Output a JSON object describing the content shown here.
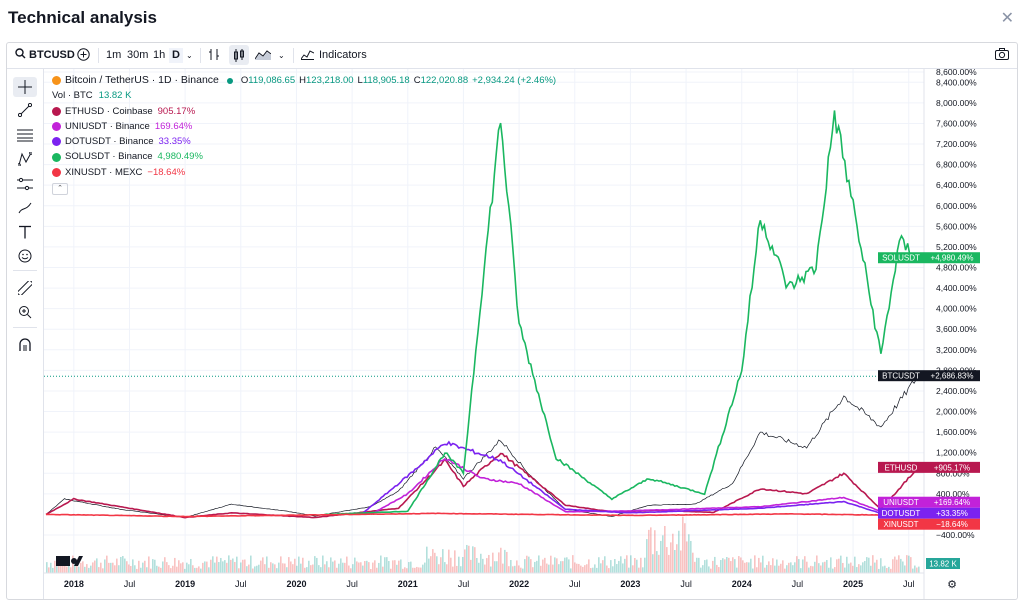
{
  "page": {
    "title": "Technical analysis",
    "close_icon": "close-icon"
  },
  "toolbar": {
    "symbol": "BTCUSD",
    "intervals": [
      "1m",
      "30m",
      "1h",
      "D"
    ],
    "indicators_label": "Indicators",
    "icons": [
      "search-icon",
      "add-symbol-icon",
      "chevron-down-icon",
      "bar-compare-icon",
      "candles-icon",
      "area-chart-icon",
      "chevron-down-icon",
      "indicators-icon",
      "camera-icon"
    ]
  },
  "drawing_tools": [
    "crosshair-icon",
    "trendline-icon",
    "fib-icon",
    "pattern-icon",
    "projection-icon",
    "brush-icon",
    "text-icon",
    "emoji-icon",
    "ruler-icon",
    "zoom-icon",
    "magnet-icon"
  ],
  "legend": {
    "main": {
      "name": "Bitcoin / TetherUS · 1D · Binance",
      "O": "119,086.65",
      "H": "123,218.00",
      "L": "118,905.18",
      "C": "122,020.88",
      "change": "+2,934.24 (+2.46%)"
    },
    "volume": {
      "label": "Vol · BTC",
      "value": "13.82 K"
    },
    "compare": [
      {
        "name": "ETHUSD · Coinbase",
        "pct": "905.17%",
        "color": "#b8184f"
      },
      {
        "name": "UNIUSDT · Binance",
        "pct": "169.64%",
        "color": "#c222d9"
      },
      {
        "name": "DOTUSDT · Binance",
        "pct": "33.35%",
        "color": "#7b22f0"
      },
      {
        "name": "SOLUSDT · Binance",
        "pct": "4,980.49%",
        "color": "#1ab760"
      },
      {
        "name": "XINUSDT · MEXC",
        "pct": "−18.64%",
        "color": "#f23645"
      }
    ]
  },
  "chart_data": {
    "type": "line",
    "y_scale": "percent",
    "ylim": [
      -400,
      8600
    ],
    "y_ticks": [
      "8,600.00%",
      "8,400.00%",
      "8,000.00%",
      "7,600.00%",
      "7,200.00%",
      "6,800.00%",
      "6,400.00%",
      "6,000.00%",
      "5,600.00%",
      "5,200.00%",
      "4,800.00%",
      "4,400.00%",
      "4,000.00%",
      "3,600.00%",
      "3,200.00%",
      "2,800.00%",
      "2,400.00%",
      "2,000.00%",
      "1,600.00%",
      "1,200.00%",
      "800.00%",
      "400.00%",
      "−400.00%"
    ],
    "x_ticks": [
      "2018",
      "Jul",
      "2019",
      "Jul",
      "2020",
      "Jul",
      "2021",
      "Jul",
      "2022",
      "Jul",
      "2023",
      "Jul",
      "2024",
      "Jul",
      "2025",
      "Jul"
    ],
    "x_range": [
      "2017-10",
      "2025-08"
    ],
    "series": [
      {
        "name": "BTCUSDT",
        "color": "#131722",
        "last_label": "+2,686.83%",
        "x": [
          "2017-10",
          "2017-12",
          "2018-06",
          "2019-01",
          "2019-06",
          "2019-12",
          "2020-03",
          "2020-09",
          "2020-12",
          "2021-04",
          "2021-07",
          "2021-11",
          "2022-02",
          "2022-06",
          "2022-11",
          "2023-03",
          "2023-08",
          "2023-12",
          "2024-03",
          "2024-08",
          "2024-12",
          "2025-04",
          "2025-08"
        ],
        "values": [
          0,
          300,
          100,
          -60,
          200,
          60,
          -30,
          150,
          450,
          1300,
          700,
          1450,
          800,
          100,
          -40,
          180,
          200,
          600,
          1600,
          1300,
          2300,
          1700,
          2687
        ]
      },
      {
        "name": "ETHUSD",
        "color": "#b8184f",
        "last_label": "+905.17%",
        "x": [
          "2017-10",
          "2018-01",
          "2018-06",
          "2019-01",
          "2019-06",
          "2020-03",
          "2020-12",
          "2021-05",
          "2021-07",
          "2021-11",
          "2022-06",
          "2022-11",
          "2023-04",
          "2023-10",
          "2024-03",
          "2024-08",
          "2024-12",
          "2025-04",
          "2025-08"
        ],
        "values": [
          0,
          300,
          150,
          -60,
          30,
          -60,
          120,
          1050,
          550,
          1200,
          180,
          50,
          80,
          40,
          500,
          400,
          800,
          100,
          905
        ]
      },
      {
        "name": "UNIUSDT",
        "color": "#c222d9",
        "last_label": "+169.64%",
        "x": [
          "2020-09",
          "2021-01",
          "2021-05",
          "2021-09",
          "2022-01",
          "2022-06",
          "2023-01",
          "2024-03",
          "2024-12",
          "2025-04",
          "2025-08"
        ],
        "values": [
          0,
          400,
          1100,
          700,
          600,
          50,
          70,
          150,
          330,
          60,
          170
        ]
      },
      {
        "name": "DOTUSDT",
        "color": "#7b22f0",
        "last_label": "+33.35%",
        "x": [
          "2020-08",
          "2021-02",
          "2021-05",
          "2021-11",
          "2022-06",
          "2023-01",
          "2024-03",
          "2024-12",
          "2025-04",
          "2025-08"
        ],
        "values": [
          0,
          900,
          1400,
          1050,
          100,
          30,
          120,
          250,
          20,
          33
        ]
      },
      {
        "name": "SOLUSDT",
        "color": "#1ab760",
        "last_label": "+4,980.49%",
        "x": [
          "2020-04",
          "2020-10",
          "2021-01",
          "2021-05",
          "2021-07",
          "2021-09",
          "2021-11",
          "2022-01",
          "2022-05",
          "2022-11",
          "2023-03",
          "2023-09",
          "2024-01",
          "2024-03",
          "2024-06",
          "2024-09",
          "2024-11",
          "2025-01",
          "2025-04",
          "2025-06",
          "2025-08"
        ],
        "values": [
          0,
          40,
          60,
          1200,
          800,
          4400,
          7700,
          3700,
          1100,
          300,
          700,
          400,
          2800,
          5800,
          4400,
          4800,
          7800,
          6000,
          3100,
          5300,
          4980
        ]
      },
      {
        "name": "XINUSDT",
        "color": "#f23645",
        "last_label": "−18.64%",
        "x": [
          "2017-10",
          "2019-01",
          "2021-04",
          "2023-01",
          "2024-06",
          "2025-08"
        ],
        "values": [
          0,
          -40,
          20,
          -20,
          10,
          -19
        ]
      }
    ],
    "reference_line": {
      "label": "BTCUSDT",
      "value": "+2,686.83%"
    },
    "volume_label": "13.82 K"
  }
}
